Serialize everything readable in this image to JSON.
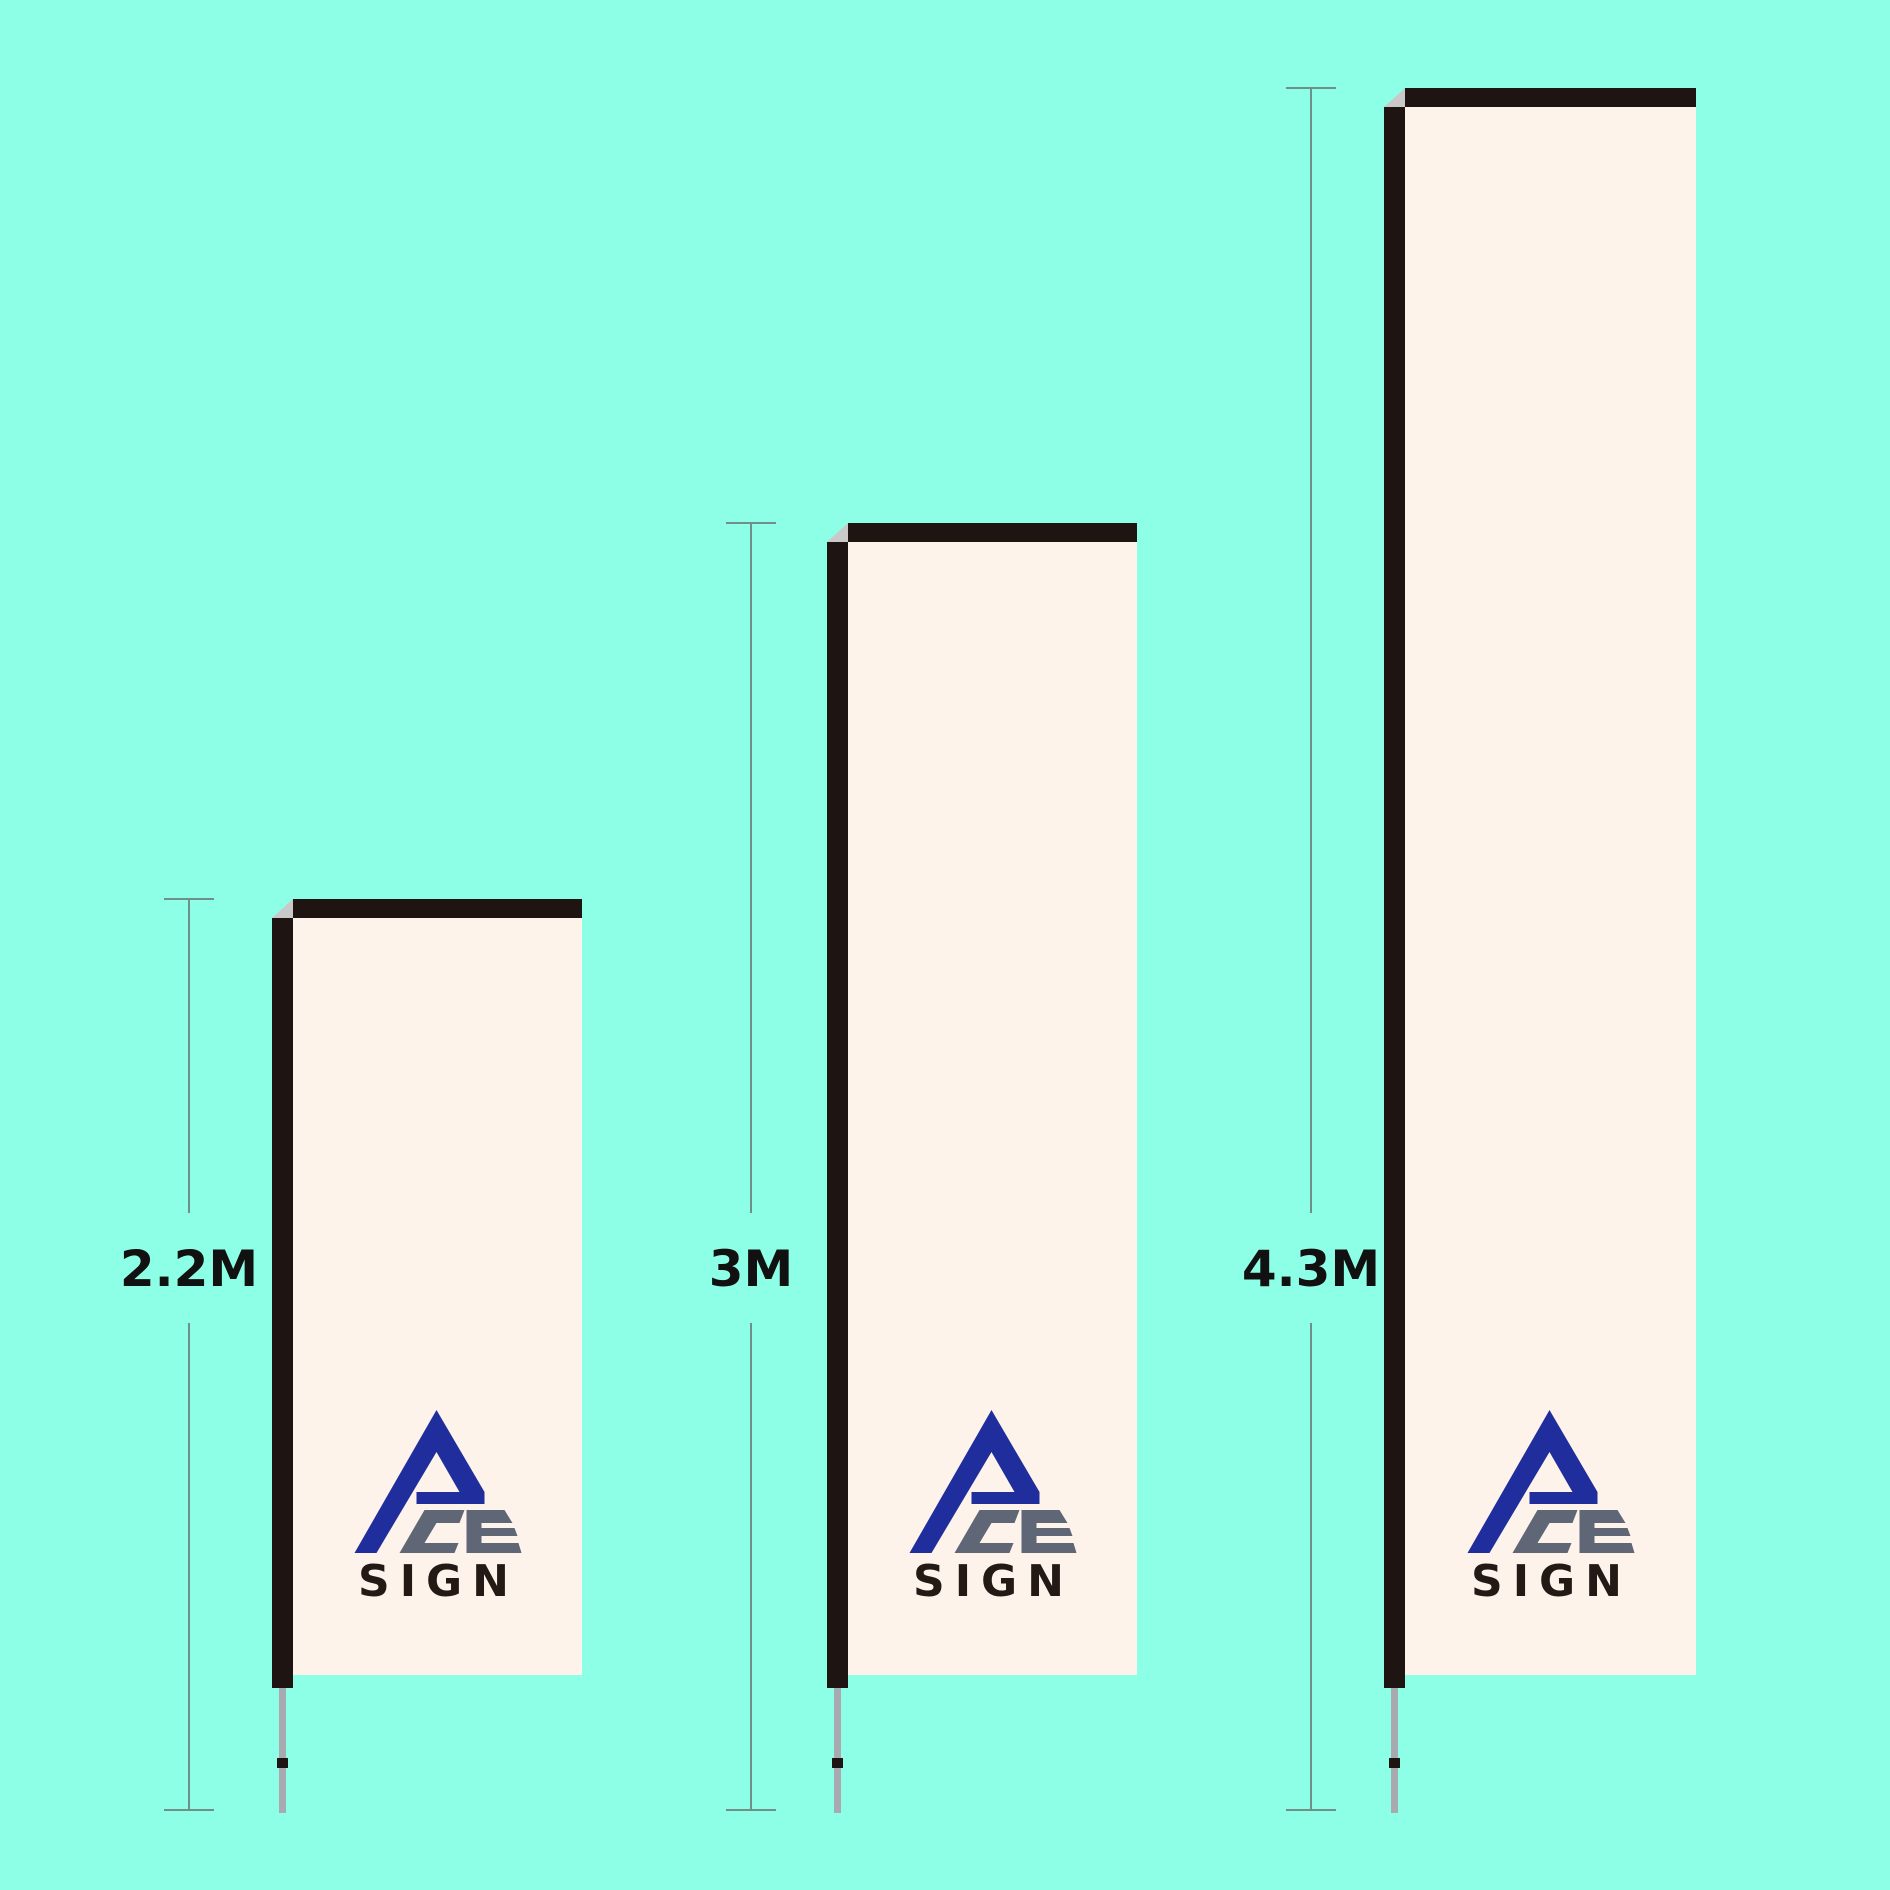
{
  "colors": {
    "background": "#8cffe6",
    "pole": "#1e1512",
    "fabric": "#fdf3ea",
    "dimension_line": "#6f8f88",
    "logo_blue": "#1f2e9c",
    "logo_gray": "#5f6676",
    "logo_text": "#231a16",
    "spike": "#a9a9b0"
  },
  "logo": {
    "lettering": "ACE SIGN",
    "text": "SIGN"
  },
  "flags": [
    {
      "height_label": "2.2M",
      "height_m": 2.2
    },
    {
      "height_label": "3M",
      "height_m": 3
    },
    {
      "height_label": "4.3M",
      "height_m": 4.3
    }
  ]
}
